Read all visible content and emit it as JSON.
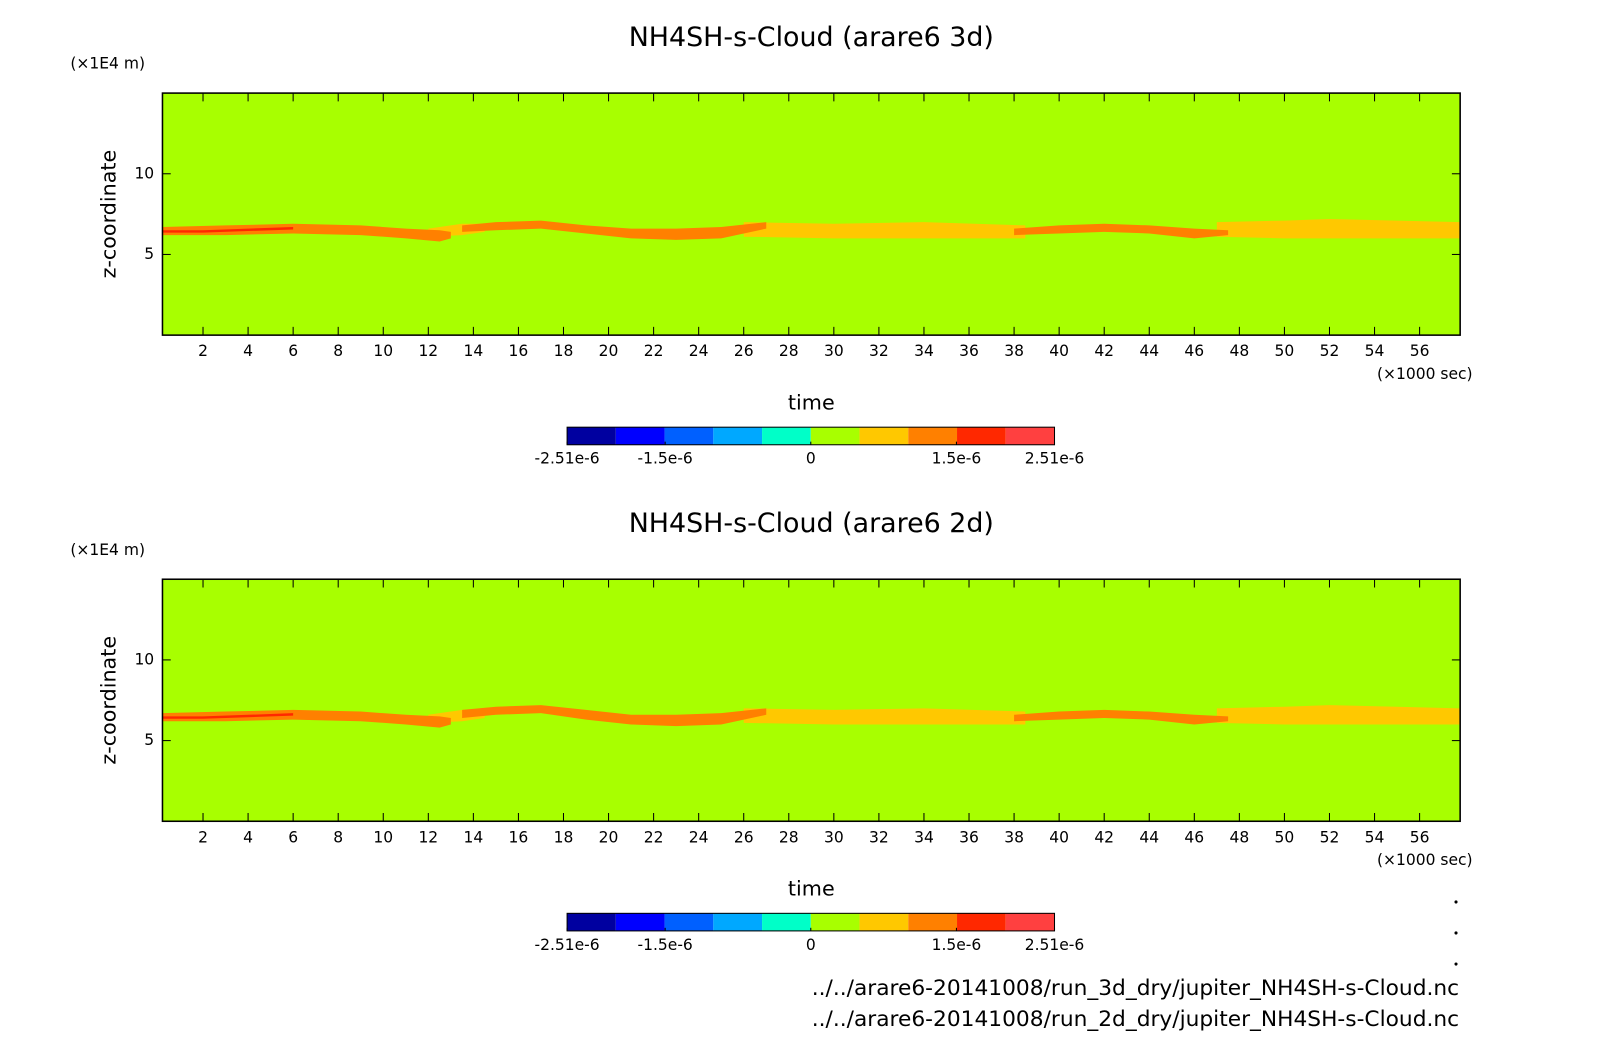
{
  "chart_data": [
    {
      "type": "contour",
      "title": "NH4SH-s-Cloud (arare6 3d)",
      "x_label": "time",
      "y_label": "z-coordinate",
      "x_unit": "(×1000 sec)",
      "y_unit": "(×1E4 m)",
      "xlim": [
        0.2,
        57.8
      ],
      "ylim": [
        0,
        15
      ],
      "xticks": [
        2,
        4,
        6,
        8,
        10,
        12,
        14,
        16,
        18,
        20,
        22,
        24,
        26,
        28,
        30,
        32,
        34,
        36,
        38,
        40,
        42,
        44,
        46,
        48,
        50,
        52,
        54,
        56
      ],
      "yticks": [
        5,
        10
      ],
      "background_color": "#a8ff00",
      "regions": [
        {
          "color": "#ffc800",
          "x": [
            12,
            13.5,
            14.5
          ],
          "top": [
            6.6,
            6.9,
            6.9
          ],
          "bottom": [
            6.1,
            6.2,
            6.4
          ]
        },
        {
          "color": "#ffc800",
          "x": [
            26,
            30,
            34,
            38.5
          ],
          "top": [
            7.0,
            6.9,
            7.0,
            6.8
          ],
          "bottom": [
            6.1,
            6.0,
            6.0,
            6.0
          ]
        },
        {
          "color": "#ffc800",
          "x": [
            47,
            50,
            52,
            55,
            57.8
          ],
          "top": [
            7.0,
            7.1,
            7.2,
            7.1,
            7.0
          ],
          "bottom": [
            6.1,
            6.0,
            6.0,
            6.0,
            6.0
          ]
        },
        {
          "color": "#ff8000",
          "x": [
            0.2,
            3,
            6,
            9,
            11,
            12.5,
            13
          ],
          "top": [
            6.7,
            6.8,
            6.9,
            6.8,
            6.6,
            6.5,
            6.4
          ],
          "bottom": [
            6.2,
            6.2,
            6.3,
            6.2,
            6.0,
            5.8,
            6.0
          ]
        },
        {
          "color": "#ff8000",
          "x": [
            13.5,
            15,
            17,
            19,
            21,
            23,
            25,
            27
          ],
          "top": [
            6.8,
            7.0,
            7.1,
            6.8,
            6.6,
            6.6,
            6.7,
            7.0
          ],
          "bottom": [
            6.4,
            6.5,
            6.6,
            6.3,
            6.0,
            5.9,
            6.0,
            6.6
          ]
        },
        {
          "color": "#ff8000",
          "x": [
            38,
            40,
            42,
            44,
            46,
            47.5
          ],
          "top": [
            6.6,
            6.8,
            6.9,
            6.8,
            6.6,
            6.5
          ],
          "bottom": [
            6.2,
            6.3,
            6.4,
            6.3,
            6.0,
            6.2
          ]
        },
        {
          "color": "#ff2800",
          "x": [
            0.2,
            2,
            4,
            6
          ],
          "top": [
            6.5,
            6.5,
            6.6,
            6.7
          ],
          "bottom": [
            6.35,
            6.35,
            6.45,
            6.55
          ]
        }
      ],
      "colorbar": {
        "lim": [
          -2.51e-06,
          2.51e-06
        ],
        "colors": [
          "#0000a0",
          "#0000ff",
          "#0060ff",
          "#00a8ff",
          "#00ffc8",
          "#a8ff00",
          "#ffc800",
          "#ff8000",
          "#ff2800",
          "#ff4040"
        ],
        "ticks": [
          {
            "value": -2.51e-06,
            "label": "-2.51e-6"
          },
          {
            "value": -1.5e-06,
            "label": "-1.5e-6"
          },
          0,
          {
            "value": 1.5e-06,
            "label": "1.5e-6"
          },
          {
            "value": 2.51e-06,
            "label": "2.51e-6"
          }
        ]
      }
    },
    {
      "type": "contour",
      "title": "NH4SH-s-Cloud (arare6 2d)",
      "x_label": "time",
      "y_label": "z-coordinate",
      "x_unit": "(×1000 sec)",
      "y_unit": "(×1E4 m)",
      "xlim": [
        0.2,
        57.8
      ],
      "ylim": [
        0,
        15
      ],
      "xticks": [
        2,
        4,
        6,
        8,
        10,
        12,
        14,
        16,
        18,
        20,
        22,
        24,
        26,
        28,
        30,
        32,
        34,
        36,
        38,
        40,
        42,
        44,
        46,
        48,
        50,
        52,
        54,
        56
      ],
      "yticks": [
        5,
        10
      ],
      "background_color": "#a8ff00",
      "regions": [
        {
          "color": "#ffc800",
          "x": [
            12,
            13.5,
            14.5
          ],
          "top": [
            6.6,
            6.9,
            7.0
          ],
          "bottom": [
            6.1,
            6.2,
            6.4
          ]
        },
        {
          "color": "#ffc800",
          "x": [
            26,
            30,
            34,
            38.5
          ],
          "top": [
            7.0,
            6.9,
            7.0,
            6.8
          ],
          "bottom": [
            6.1,
            6.0,
            6.0,
            6.0
          ]
        },
        {
          "color": "#ffc800",
          "x": [
            47,
            50,
            52,
            55,
            57.8
          ],
          "top": [
            7.0,
            7.1,
            7.2,
            7.1,
            7.0
          ],
          "bottom": [
            6.1,
            6.0,
            6.0,
            6.0,
            6.0
          ]
        },
        {
          "color": "#ff8000",
          "x": [
            0.2,
            3,
            6,
            9,
            11,
            12.5,
            13
          ],
          "top": [
            6.7,
            6.8,
            6.9,
            6.8,
            6.6,
            6.5,
            6.4
          ],
          "bottom": [
            6.2,
            6.2,
            6.3,
            6.2,
            6.0,
            5.8,
            6.0
          ]
        },
        {
          "color": "#ff8000",
          "x": [
            13.5,
            15,
            17,
            19,
            21,
            23,
            25,
            27
          ],
          "top": [
            6.9,
            7.1,
            7.2,
            6.9,
            6.6,
            6.6,
            6.7,
            7.0
          ],
          "bottom": [
            6.4,
            6.6,
            6.7,
            6.3,
            6.0,
            5.9,
            6.0,
            6.6
          ]
        },
        {
          "color": "#ff8000",
          "x": [
            38,
            40,
            42,
            44,
            46,
            47.5
          ],
          "top": [
            6.6,
            6.8,
            6.9,
            6.8,
            6.6,
            6.5
          ],
          "bottom": [
            6.2,
            6.3,
            6.4,
            6.3,
            6.0,
            6.2
          ]
        },
        {
          "color": "#ff2800",
          "x": [
            0.2,
            2,
            4,
            6
          ],
          "top": [
            6.5,
            6.5,
            6.6,
            6.7
          ],
          "bottom": [
            6.35,
            6.35,
            6.45,
            6.55
          ]
        }
      ],
      "colorbar": {
        "lim": [
          -2.51e-06,
          2.51e-06
        ],
        "colors": [
          "#0000a0",
          "#0000ff",
          "#0060ff",
          "#00a8ff",
          "#00ffc8",
          "#a8ff00",
          "#ffc800",
          "#ff8000",
          "#ff2800",
          "#ff4040"
        ],
        "ticks": [
          {
            "value": -2.51e-06,
            "label": "-2.51e-6"
          },
          {
            "value": -1.5e-06,
            "label": "-1.5e-6"
          },
          0,
          {
            "value": 1.5e-06,
            "label": "1.5e-6"
          },
          {
            "value": 2.51e-06,
            "label": "2.51e-6"
          }
        ]
      }
    }
  ],
  "footnotes": [
    "../../arare6-20141008/run_3d_dry/jupiter_NH4SH-s-Cloud.nc",
    "../../arare6-20141008/run_2d_dry/jupiter_NH4SH-s-Cloud.nc"
  ]
}
